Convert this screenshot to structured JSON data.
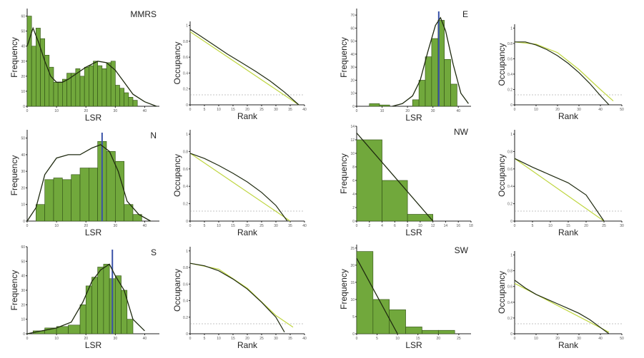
{
  "chart_data": [
    {
      "type": "bar",
      "title": "MMRS",
      "xlabel": "LSR",
      "ylabel": "Frequency",
      "xlim": [
        0,
        45
      ],
      "ylim": [
        0,
        65
      ],
      "bins": [
        [
          0,
          1.5
        ],
        [
          1.5,
          3
        ],
        [
          3,
          4.5
        ],
        [
          4.5,
          6
        ],
        [
          6,
          7.5
        ],
        [
          7.5,
          9
        ],
        [
          9,
          10.5
        ],
        [
          10.5,
          12
        ],
        [
          12,
          13.5
        ],
        [
          13.5,
          15
        ],
        [
          15,
          16.5
        ],
        [
          16.5,
          18
        ],
        [
          18,
          19.5
        ],
        [
          19.5,
          21
        ],
        [
          21,
          22.5
        ],
        [
          22.5,
          24
        ],
        [
          24,
          25.5
        ],
        [
          25.5,
          27
        ],
        [
          27,
          28.5
        ],
        [
          28.5,
          30
        ],
        [
          30,
          31.5
        ],
        [
          31.5,
          33
        ],
        [
          33,
          34.5
        ],
        [
          34.5,
          36
        ],
        [
          36,
          37.5
        ]
      ],
      "values": [
        60,
        40,
        52,
        45,
        34,
        26,
        16,
        16,
        18,
        22,
        22,
        25,
        20,
        26,
        27,
        30,
        27,
        25,
        29,
        30,
        14,
        12,
        9,
        6,
        4
      ],
      "kde_x": [
        0,
        2,
        4,
        6,
        8,
        10,
        12,
        14,
        17,
        20,
        24,
        27,
        30,
        33,
        36,
        40,
        44
      ],
      "kde_y": [
        40,
        52,
        42,
        30,
        20,
        16,
        16,
        18,
        22,
        26,
        30,
        29,
        24,
        16,
        8,
        3,
        0
      ]
    },
    {
      "type": "line",
      "xlabel": "Rank",
      "ylabel": "Occupancy",
      "xlim": [
        0,
        40
      ],
      "ylim": [
        0,
        1.05
      ],
      "x": [
        0,
        3,
        8,
        13,
        18,
        23,
        28,
        33,
        38
      ],
      "y": [
        0.95,
        0.88,
        0.76,
        0.64,
        0.53,
        0.42,
        0.3,
        0.16,
        0.0
      ],
      "fit_x": [
        0,
        38
      ],
      "fit_y": [
        0.92,
        0.0
      ]
    },
    {
      "type": "bar",
      "title": "E",
      "xlabel": "LSR",
      "ylabel": "Frequency",
      "xlim": [
        0,
        45
      ],
      "ylim": [
        0,
        75
      ],
      "bins": [
        [
          22,
          24.5
        ],
        [
          24.5,
          27
        ],
        [
          27,
          29.5
        ],
        [
          29.5,
          32
        ],
        [
          32,
          34.5
        ],
        [
          34.5,
          37
        ],
        [
          37,
          39.5
        ]
      ],
      "values": [
        5,
        20,
        38,
        52,
        66,
        36,
        17
      ],
      "extra_bins": [
        [
          5,
          9
        ],
        [
          9,
          13
        ]
      ],
      "extra_values": [
        2,
        1
      ],
      "mean": 32.3,
      "kde_x": [
        14,
        18,
        22,
        25,
        28,
        31,
        33,
        35,
        38,
        41,
        44
      ],
      "kde_y": [
        0,
        2,
        8,
        20,
        42,
        62,
        68,
        58,
        32,
        10,
        2
      ]
    },
    {
      "type": "line",
      "xlabel": "Rank",
      "ylabel": "Occupancy",
      "xlim": [
        0,
        50
      ],
      "ylim": [
        0,
        1.05
      ],
      "x": [
        0,
        5,
        10,
        15,
        20,
        25,
        30,
        35,
        40,
        44
      ],
      "y": [
        0.82,
        0.82,
        0.78,
        0.72,
        0.64,
        0.54,
        0.42,
        0.28,
        0.12,
        0.0
      ],
      "fit_x": [
        0,
        10,
        20,
        30,
        40,
        46
      ],
      "fit_y": [
        0.82,
        0.79,
        0.68,
        0.46,
        0.2,
        0.05
      ]
    },
    {
      "type": "bar",
      "title": "N",
      "xlabel": "LSR",
      "ylabel": "Frequency",
      "xlim": [
        0,
        45
      ],
      "ylim": [
        0,
        55
      ],
      "bins": [
        [
          3,
          6
        ],
        [
          6,
          9
        ],
        [
          9,
          12
        ],
        [
          12,
          15
        ],
        [
          15,
          18
        ],
        [
          18,
          21
        ],
        [
          21,
          24
        ],
        [
          24,
          27
        ],
        [
          27,
          30
        ],
        [
          30,
          33
        ],
        [
          33,
          36
        ],
        [
          36,
          39
        ]
      ],
      "values": [
        10,
        25,
        26,
        25,
        28,
        32,
        32,
        48,
        42,
        36,
        10,
        4
      ],
      "mean": 25.5,
      "kde_x": [
        0,
        3,
        6,
        10,
        14,
        18,
        22,
        25,
        28,
        31,
        34,
        38,
        42
      ],
      "kde_y": [
        0,
        8,
        28,
        38,
        40,
        40,
        44,
        46,
        42,
        30,
        12,
        4,
        0
      ]
    },
    {
      "type": "line",
      "xlabel": "Rank",
      "ylabel": "Occupancy",
      "xlim": [
        0,
        40
      ],
      "ylim": [
        0,
        1.05
      ],
      "x": [
        0,
        5,
        10,
        15,
        20,
        25,
        30,
        34
      ],
      "y": [
        0.78,
        0.72,
        0.64,
        0.55,
        0.45,
        0.33,
        0.18,
        0.0
      ],
      "fit_x": [
        0,
        35
      ],
      "fit_y": [
        0.78,
        0.0
      ]
    },
    {
      "type": "bar",
      "title": "NW",
      "xlabel": "LSR",
      "ylabel": "Frequency",
      "xlim": [
        0,
        18
      ],
      "ylim": [
        0,
        14
      ],
      "bins": [
        [
          0,
          4
        ],
        [
          4,
          8
        ],
        [
          8,
          12
        ]
      ],
      "values": [
        12,
        6,
        1
      ],
      "fit_x": [
        0,
        12
      ],
      "fit_y": [
        13,
        0
      ]
    },
    {
      "type": "line",
      "xlabel": "Rank",
      "ylabel": "Occupancy",
      "xlim": [
        0,
        30
      ],
      "ylim": [
        0,
        1.05
      ],
      "x": [
        0,
        5,
        10,
        15,
        20,
        25
      ],
      "y": [
        0.72,
        0.62,
        0.53,
        0.44,
        0.3,
        0.0
      ],
      "fit_x": [
        0,
        25
      ],
      "fit_y": [
        0.72,
        0.0
      ]
    },
    {
      "type": "bar",
      "title": "S",
      "xlabel": "LSR",
      "ylabel": "Frequency",
      "xlim": [
        0,
        45
      ],
      "ylim": [
        0,
        60
      ],
      "bins": [
        [
          2,
          6
        ],
        [
          6,
          10
        ],
        [
          10,
          14
        ],
        [
          14,
          18
        ],
        [
          18,
          20
        ],
        [
          20,
          22
        ],
        [
          22,
          24
        ],
        [
          24,
          26
        ],
        [
          26,
          28
        ],
        [
          28,
          30
        ],
        [
          30,
          32
        ],
        [
          32,
          34
        ],
        [
          34,
          36
        ]
      ],
      "values": [
        2,
        4,
        5,
        6,
        20,
        33,
        39,
        46,
        48,
        38,
        40,
        30,
        10
      ],
      "mean": 29,
      "kde_x": [
        0,
        5,
        10,
        15,
        19,
        22,
        25,
        28,
        30,
        33,
        36,
        40
      ],
      "kde_y": [
        0,
        2,
        4,
        8,
        22,
        36,
        44,
        48,
        40,
        30,
        10,
        2
      ]
    },
    {
      "type": "line",
      "xlabel": "Rank",
      "ylabel": "Occupancy",
      "xlim": [
        0,
        40
      ],
      "ylim": [
        0,
        1.05
      ],
      "x": [
        0,
        5,
        10,
        15,
        20,
        25,
        30,
        33
      ],
      "y": [
        0.85,
        0.82,
        0.76,
        0.66,
        0.54,
        0.38,
        0.2,
        0.02
      ],
      "fit_x": [
        0,
        10,
        20,
        30,
        36
      ],
      "fit_y": [
        0.85,
        0.78,
        0.55,
        0.22,
        0.08
      ]
    },
    {
      "type": "bar",
      "title": "SW",
      "xlabel": "LSR",
      "ylabel": "Frequency",
      "xlim": [
        0,
        28
      ],
      "ylim": [
        0,
        26
      ],
      "bins": [
        [
          0,
          4
        ],
        [
          4,
          8
        ],
        [
          8,
          12
        ],
        [
          12,
          16
        ],
        [
          16,
          20
        ],
        [
          20,
          24
        ]
      ],
      "values": [
        24,
        10,
        7,
        2,
        1,
        1
      ],
      "fit_x": [
        0,
        10
      ],
      "fit_y": [
        22,
        0
      ]
    },
    {
      "type": "line",
      "xlabel": "Rank",
      "ylabel": "Occupancy",
      "xlim": [
        0,
        50
      ],
      "ylim": [
        0,
        1.05
      ],
      "x": [
        0,
        5,
        10,
        15,
        20,
        25,
        30,
        35,
        40,
        44
      ],
      "y": [
        0.68,
        0.58,
        0.5,
        0.44,
        0.38,
        0.32,
        0.26,
        0.18,
        0.08,
        0.0
      ],
      "fit_x": [
        0,
        44
      ],
      "fit_y": [
        0.64,
        0.02
      ]
    }
  ]
}
